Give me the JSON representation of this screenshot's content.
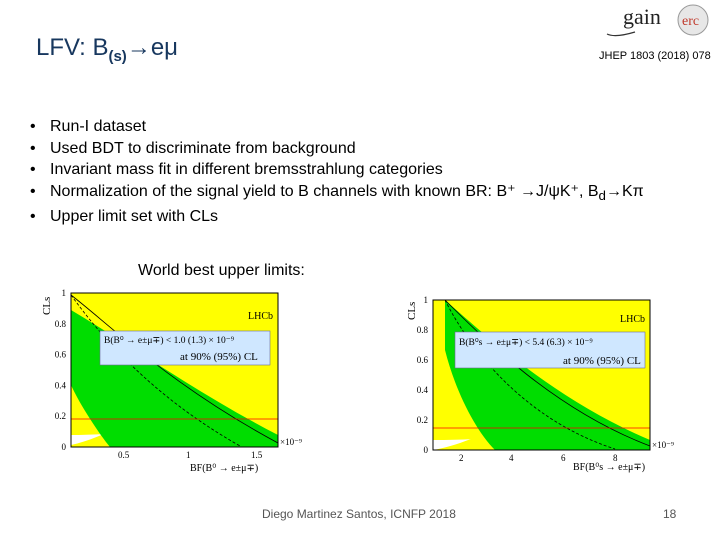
{
  "slide": {
    "title_main": "LFV: B",
    "title_sub": "(s)",
    "title_arrow": "→",
    "title_end": "eμ",
    "reference": "JHEP 1803 (2018) 078",
    "logo_text_1": "gain",
    "logo_text_2": "erc",
    "bullets": [
      "Run-I dataset",
      "Used BDT to discriminate from background",
      "Invariant mass fit in different bremsstrahlung categories",
      "Normalization of the signal yield to B channels with known BR: B⁺ →J/ψK⁺, B",
      "Upper limit set with CLs"
    ],
    "bullet4_sub": "d",
    "bullet4_tail": "→Kπ",
    "bullet_marker": "•",
    "caption": "World best upper limits:",
    "footer": "Diego Martinez Santos, ICNFP 2018",
    "page_number": "18"
  },
  "plots": [
    {
      "ylabel": "CLs",
      "xlabel": "BF(B⁰ → e±μ∓)",
      "experiment": "LHCb",
      "box_line1": "B(B⁰ → e±μ∓) < 1.0 (1.3) × 10⁻⁹",
      "box_line2": "at 90% (95%) CL",
      "scale_label": "×10⁻⁹",
      "xticks": [
        "0.5",
        "1",
        "1.5"
      ],
      "yticks": [
        "0",
        "0.2",
        "0.4",
        "0.6",
        "0.8",
        "1"
      ]
    },
    {
      "ylabel": "CLs",
      "xlabel": "BF(B⁰s → e±μ∓)",
      "experiment": "LHCb",
      "box_line1": "B(B⁰s → e±μ∓) < 5.4 (6.3) × 10⁻⁹",
      "box_line2": "at 90% (95%) CL",
      "scale_label": "×10⁻⁹",
      "xticks": [
        "2",
        "4",
        "6",
        "8"
      ],
      "yticks": [
        "0",
        "0.2",
        "0.4",
        "0.6",
        "0.8",
        "1"
      ]
    }
  ],
  "colors": {
    "title": "#17375e",
    "band_2sigma": "#ffff00",
    "band_1sigma": "#00dd00",
    "box_fill": "#cfe7ff"
  }
}
